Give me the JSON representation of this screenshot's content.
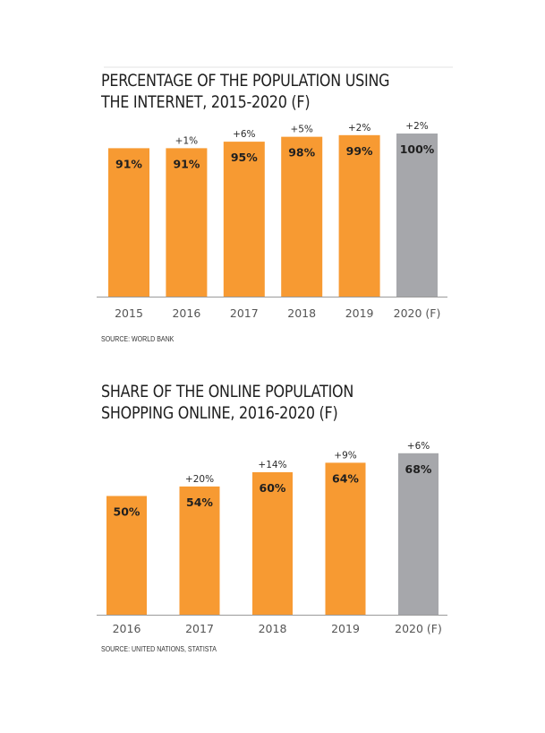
{
  "chart_data": [
    {
      "type": "bar",
      "title": "PERCENTAGE OF THE POPULATION USING THE INTERNET, 2015-2020 (F)",
      "title_lines": [
        "PERCENTAGE OF THE POPULATION USING",
        "THE INTERNET, 2015-2020 (F)"
      ],
      "categories": [
        "2015",
        "2016",
        "2017",
        "2018",
        "2019",
        "2020 (F)"
      ],
      "values": [
        91,
        91,
        95,
        98,
        99,
        100
      ],
      "value_labels": [
        "91%",
        "91%",
        "95%",
        "98%",
        "99%",
        "100%"
      ],
      "change_labels": [
        "",
        "+1%",
        "+6%",
        "+5%",
        "+2%",
        "+2%"
      ],
      "ylim": [
        0,
        100
      ],
      "grid": false,
      "source": "SOURCE: WORLD BANK"
    },
    {
      "type": "bar",
      "title": "SHARE OF THE ONLINE POPULATION SHOPPING ONLINE, 2016-2020 (F)",
      "title_lines": [
        "SHARE OF THE ONLINE POPULATION",
        "SHOPPING ONLINE, 2016-2020 (F)"
      ],
      "categories": [
        "2016",
        "2017",
        "2018",
        "2019",
        "2020 (F)"
      ],
      "values": [
        50,
        54,
        60,
        64,
        68
      ],
      "value_labels": [
        "50%",
        "54%",
        "60%",
        "64%",
        "68%"
      ],
      "change_labels": [
        "",
        "+20%",
        "+14%",
        "+9%",
        "+6%"
      ],
      "ylim": [
        0,
        100
      ],
      "grid": false,
      "source": "SOURCE: UNITED NATIONS, STATISTA"
    }
  ],
  "colors": {
    "actual": "#f79a32",
    "forecast": "#a6a7ab",
    "axis": "#9a9a9a",
    "tick_text": "#555555",
    "value_text": "#1f1f1f"
  }
}
